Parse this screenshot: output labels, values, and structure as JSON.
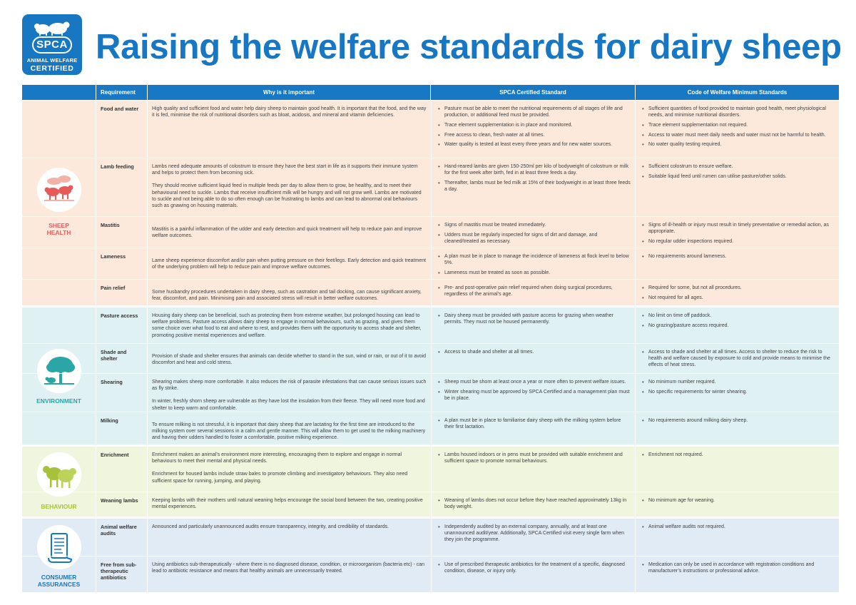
{
  "logo": {
    "brand": "SPCA",
    "line1": "ANIMAL WELFARE",
    "line2": "CERTIFIED"
  },
  "title": "Raising the welfare standards for dairy sheep",
  "columns": {
    "requirement": "Requirement",
    "why": "Why is it important",
    "spca": "SPCA Certified Standard",
    "code": "Code of Welfare Minimum Standards"
  },
  "colors": {
    "blue": "#1777c3",
    "health": "#e85a5a",
    "environment": "#2aa6a6",
    "behaviour": "#a5c23a",
    "consumer": "#1777c3"
  },
  "categories": {
    "health": {
      "label_line1": "SHEEP",
      "label_line2": "HEALTH",
      "icon": "sheep-icon",
      "rows": [
        {
          "requirement": "Food and water",
          "why": [
            "High quality and sufficient food and water help dairy sheep to maintain good health. It is important that the food, and the way it is fed, minimise the risk of nutritional disorders such as bloat, acidosis, and mineral and vitamin deficiencies."
          ],
          "spca": [
            "Pasture must be able to meet the nutritional requirements of all stages of life and production, or additional feed must be provided.",
            "Trace element supplementation is in place and monitored.",
            "Free access to clean, fresh water at all times.",
            "Water quality is tested at least every three years and for new water sources."
          ],
          "code": [
            "Sufficient quantities of food provided to maintain good health, meet physiological needs, and minimise nutritional disorders.",
            "Trace element supplementation not required.",
            "Access to water must meet daily needs and water must not be harmful to health.",
            "No water quality testing required."
          ]
        },
        {
          "requirement": "Lamb feeding",
          "why": [
            "Lambs need adequate amounts of colostrum to ensure they have the best start in life as it supports their immune system and helps to protect them from becoming sick.",
            "They should receive sufficient liquid feed in multiple feeds per day to allow them to grow, be healthy, and to meet their behavioural need to suckle. Lambs that receive insufficient milk will be hungry and will not grow well. Lambs are motivated to suckle and not being able to do so often enough can be frustrating to lambs and can lead to abnormal oral behaviours such as gnawing on housing materials."
          ],
          "spca": [
            "Hand-reared lambs are given 150-250ml per kilo of bodyweight of colostrum or milk for the first week after birth, fed in at least three feeds a day.",
            "Thereafter, lambs must be fed milk at 15% of their bodyweight in at least three feeds a day."
          ],
          "code": [
            "Sufficient colostrum to ensure welfare.",
            "Suitable liquid feed until rumen can utilise pasture/other solids."
          ]
        },
        {
          "requirement": "Mastitis",
          "why": [
            "Mastitis is a painful inflammation of the udder and early detection and quick treatment will help to reduce pain and improve welfare outcomes."
          ],
          "spca": [
            "Signs of mastitis must be treated immediately.",
            "Udders must be regularly inspected for signs of dirt and damage, and cleaned/treated as necessary."
          ],
          "code": [
            "Signs of ill-health or injury must result in timely preventative or remedial action, as appropriate.",
            "No regular udder inspections required."
          ]
        },
        {
          "requirement": "Lameness",
          "why": [
            "Lame sheep experience discomfort and/or pain when putting pressure on their feet/legs. Early detection and quick treatment of the underlying problem will help to reduce pain and improve welfare outcomes."
          ],
          "spca": [
            "A plan must be in place to manage the incidence of lameness at flock level to below 5%.",
            "Lameness must be treated as soon as possible."
          ],
          "code": [
            "No requirements around lameness."
          ]
        },
        {
          "requirement": "Pain relief",
          "why": [
            "Some husbandry procedures undertaken in dairy sheep, such as castration and tail docking, can cause significant anxiety, fear, discomfort, and pain. Minimising pain and associated stress will result in better welfare outcomes."
          ],
          "spca": [
            "Pre- and post-operative pain relief required when doing surgical procedures, regardless of the animal’s age."
          ],
          "code": [
            "Required for some, but not all procedures.",
            "Not required for all ages."
          ]
        }
      ]
    },
    "environment": {
      "label": "ENVIRONMENT",
      "icon": "tree-icon",
      "rows": [
        {
          "requirement": "Pasture access",
          "why": [
            "Housing dairy sheep can be beneficial, such as protecting them from extreme weather, but prolonged housing can lead to welfare problems. Pasture access allows dairy sheep to engage in normal behaviours, such as grazing, and gives them some choice over what food to eat and where to rest, and provides them with the opportunity to access shade and shelter, promoting positive mental experiences and welfare."
          ],
          "spca": [
            "Dairy sheep must be provided with pasture access for grazing when weather permits. They must not be housed permanently."
          ],
          "code": [
            "No limit on time off paddock.",
            "No grazing/pasture access required."
          ]
        },
        {
          "requirement": "Shade and shelter",
          "why": [
            "Provision of shade and shelter ensures that animals can decide whether to stand in the sun, wind or rain, or out of it to avoid discomfort and heat and cold stress."
          ],
          "spca": [
            "Access to shade and shelter at all times."
          ],
          "code": [
            "Access to shade and shelter at all times. Access to shelter to reduce the risk to health and welfare caused by exposure to cold and provide means to minimise the effects of heat stress."
          ]
        },
        {
          "requirement": "Shearing",
          "why": [
            "Shearing makes sheep more comfortable. It also reduces the risk of parasite infestations that can cause serious issues such as fly strike.",
            "In winter, freshly shorn sheep are vulnerable as they have lost the insulation from their fleece. They will need more food and shelter to keep warm and comfortable."
          ],
          "spca": [
            "Sheep must be shorn at least once a year or more often to prevent welfare issues.",
            "Winter shearing must be approved by SPCA Certified and a management plan must be in place."
          ],
          "code": [
            "No minimum number required.",
            "No specific requirements for winter shearing."
          ]
        },
        {
          "requirement": "Milking",
          "why": [
            "To ensure milking is not stressful, it is important that dairy sheep that are lactating for the first time are introduced to the milking system over several sessions in a calm and gentle manner. This will allow them to get used to the milking machinery and having their udders handled to foster a comfortable, positive milking experience."
          ],
          "spca": [
            "A plan must be in place to familiarise dairy sheep with the milking system before their first lactation."
          ],
          "code": [
            "No requirements around milking dairy sheep."
          ]
        }
      ]
    },
    "behaviour": {
      "label": "BEHAVIOUR",
      "icon": "sheep-pair-icon",
      "rows": [
        {
          "requirement": "Enrichment",
          "why": [
            "Enrichment makes an animal’s environment more interesting, encouraging them to explore and engage in normal behaviours to meet their mental and physical needs.",
            "Enrichment for housed lambs include straw bales to promote climbing and investigatory behaviours. They also need sufficient space for running, jumping, and playing."
          ],
          "spca": [
            "Lambs housed indoors or in pens must be provided with suitable enrichment and sufficient space to promote normal behaviours."
          ],
          "code": [
            "Enrichment not required."
          ]
        },
        {
          "requirement": "Weaning lambs",
          "why": [
            "Keeping lambs with their mothers until natural weaning helps encourage the social bond between the two, creating positive mental experiences."
          ],
          "spca": [
            "Weaning of lambs does not occur before they have reached approximately 13kg in body weight."
          ],
          "code": [
            "No minimum age for weaning."
          ]
        }
      ]
    },
    "consumer": {
      "label_line1": "CONSUMER",
      "label_line2": "ASSURANCES",
      "icon": "scroll-icon",
      "rows": [
        {
          "requirement": "Animal welfare audits",
          "why": [
            "Announced and particularly unannounced audits ensure transparency, integrity, and credibility of standards."
          ],
          "spca": [
            "Independently audited by an external company, annually, and at least one unannounced audit/year. Additionally, SPCA Certified visit every single farm when they join the programme."
          ],
          "code": [
            "Animal welfare audits not required."
          ]
        },
        {
          "requirement": "Free from sub-therapeutic antibiotics",
          "why": [
            "Using antibiotics sub-therapeutically - where there is no diagnosed disease, condition, or microorganism (bacteria etc) - can lead to antibiotic resistance and means that healthy animals are unnecessarily treated."
          ],
          "spca": [
            "Use of prescribed therapeutic antibiotics for the treatment of a specific, diagnosed condition, disease, or injury only."
          ],
          "code": [
            "Medication can only be used in accordance with registration conditions and manufacturer’s instructions or professional advice."
          ]
        }
      ]
    }
  }
}
